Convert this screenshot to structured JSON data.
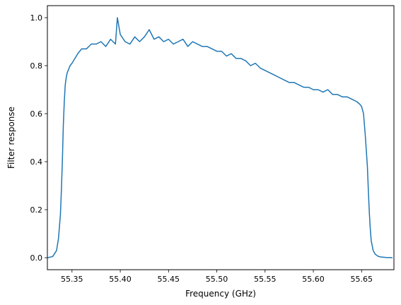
{
  "chart_data": {
    "type": "line",
    "title": "",
    "xlabel": "Frequency (GHz)",
    "ylabel": "Filter response",
    "xlim": [
      55.3245,
      55.6835
    ],
    "ylim": [
      -0.05,
      1.05
    ],
    "xticks": [
      55.35,
      55.4,
      55.45,
      55.5,
      55.55,
      55.6,
      55.65
    ],
    "xtick_labels": [
      "55.35",
      "55.40",
      "55.45",
      "55.50",
      "55.55",
      "55.60",
      "55.65"
    ],
    "yticks": [
      0.0,
      0.2,
      0.4,
      0.6,
      0.8,
      1.0
    ],
    "ytick_labels": [
      "0.0",
      "0.2",
      "0.4",
      "0.6",
      "0.8",
      "1.0"
    ],
    "grid": false,
    "series": [
      {
        "color": "#1f77b4",
        "x": [
          55.325,
          55.33,
          55.334,
          55.336,
          55.338,
          55.339,
          55.34,
          55.341,
          55.342,
          55.343,
          55.344,
          55.345,
          55.346,
          55.348,
          55.35,
          55.353,
          55.356,
          55.36,
          55.365,
          55.37,
          55.375,
          55.38,
          55.385,
          55.39,
          55.395,
          55.397,
          55.4,
          55.405,
          55.41,
          55.415,
          55.42,
          55.425,
          55.43,
          55.435,
          55.44,
          55.445,
          55.45,
          55.455,
          55.46,
          55.465,
          55.47,
          55.475,
          55.48,
          55.485,
          55.49,
          55.495,
          55.5,
          55.505,
          55.51,
          55.515,
          55.52,
          55.525,
          55.53,
          55.535,
          55.54,
          55.545,
          55.55,
          55.555,
          55.56,
          55.565,
          55.57,
          55.575,
          55.58,
          55.585,
          55.59,
          55.595,
          55.6,
          55.605,
          55.61,
          55.615,
          55.62,
          55.625,
          55.63,
          55.635,
          55.64,
          55.645,
          55.648,
          55.65,
          55.652,
          55.654,
          55.656,
          55.657,
          55.658,
          55.659,
          55.66,
          55.662,
          55.664,
          55.667,
          55.67,
          55.675,
          55.682
        ],
        "y": [
          0.0,
          0.005,
          0.03,
          0.08,
          0.18,
          0.28,
          0.4,
          0.55,
          0.65,
          0.72,
          0.75,
          0.77,
          0.78,
          0.8,
          0.81,
          0.83,
          0.85,
          0.87,
          0.87,
          0.89,
          0.89,
          0.9,
          0.88,
          0.91,
          0.89,
          1.0,
          0.93,
          0.9,
          0.89,
          0.92,
          0.9,
          0.92,
          0.95,
          0.91,
          0.92,
          0.9,
          0.91,
          0.89,
          0.9,
          0.91,
          0.88,
          0.9,
          0.89,
          0.88,
          0.88,
          0.87,
          0.86,
          0.86,
          0.84,
          0.85,
          0.83,
          0.83,
          0.82,
          0.8,
          0.81,
          0.79,
          0.78,
          0.77,
          0.76,
          0.75,
          0.74,
          0.73,
          0.73,
          0.72,
          0.71,
          0.71,
          0.7,
          0.7,
          0.69,
          0.7,
          0.68,
          0.68,
          0.67,
          0.67,
          0.66,
          0.65,
          0.64,
          0.63,
          0.6,
          0.5,
          0.38,
          0.28,
          0.19,
          0.12,
          0.07,
          0.03,
          0.015,
          0.006,
          0.003,
          0.001,
          0.0
        ]
      }
    ]
  }
}
